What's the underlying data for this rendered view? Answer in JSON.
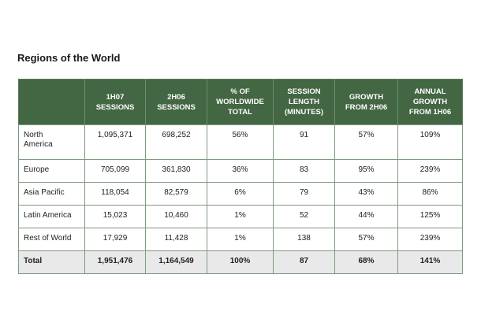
{
  "title": "Regions of the World",
  "table": {
    "headers": [
      "",
      "1H07\nSESSIONS",
      "2H06\nSESSIONS",
      "% OF\nWORLDWIDE\nTOTAL",
      "SESSION\nLENGTH\n(MINUTES)",
      "GROWTH\nFROM 2H06",
      "ANNUAL\nGROWTH\nFROM 1H06"
    ],
    "rows": [
      [
        "North\nAmerica",
        "1,095,371",
        "698,252",
        "56%",
        "91",
        "57%",
        "109%"
      ],
      [
        "Europe",
        "705,099",
        "361,830",
        "36%",
        "83",
        "95%",
        "239%"
      ],
      [
        "Asia Pacific",
        "118,054",
        "82,579",
        "6%",
        "79",
        "43%",
        "86%"
      ],
      [
        "Latin America",
        "15,023",
        "10,460",
        "1%",
        "52",
        "44%",
        "125%"
      ],
      [
        "Rest of World",
        "17,929",
        "11,428",
        "1%",
        "138",
        "57%",
        "239%"
      ]
    ],
    "total": [
      "Total",
      "1,951,476",
      "1,164,549",
      "100%",
      "87",
      "68%",
      "141%"
    ]
  }
}
